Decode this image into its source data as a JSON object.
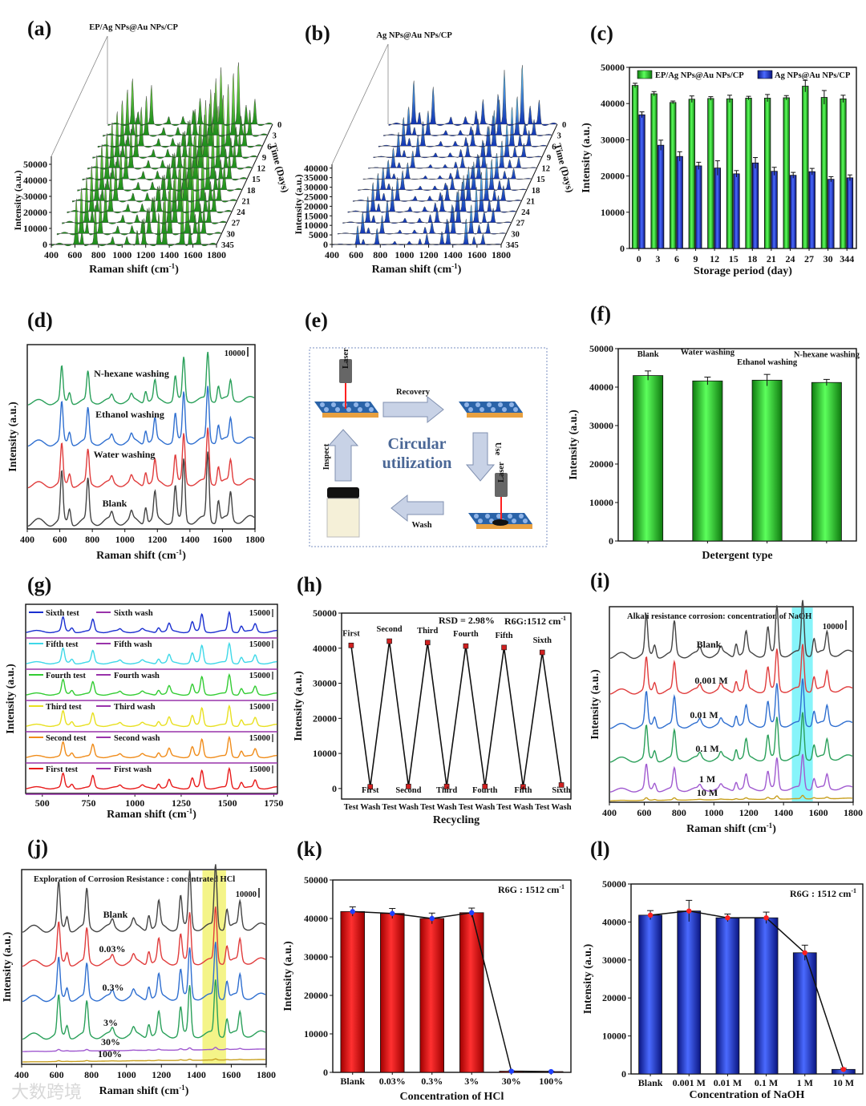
{
  "panel_letters": [
    "(a)",
    "(b)",
    "(c)",
    "(d)",
    "(e)",
    "(f)",
    "(g)",
    "(h)",
    "(i)",
    "(j)",
    "(k)",
    "(l)"
  ],
  "colors": {
    "green": "#22c422",
    "blue": "#1f2fa8",
    "red": "#e01010",
    "cyan": "#7eeef5",
    "yellow": "#f2f26a"
  },
  "watermark": "大数跨境",
  "chart_data": [
    {
      "id": "a",
      "type": "area",
      "title": "EP/Ag NPs@Au NPs/CP",
      "xlabel": "Raman shift (cm-1)",
      "ylabel": "Intensity (a.u.)",
      "zlabel": "Time (Days)",
      "xticks": [
        "400",
        "600",
        "800",
        "1000",
        "1200",
        "1400",
        "1600",
        "1800"
      ],
      "yticks": [
        "0",
        "10000",
        "20000",
        "30000",
        "40000",
        "50000"
      ],
      "zticks": [
        "0",
        "3",
        "6",
        "9",
        "12",
        "15",
        "18",
        "21",
        "24",
        "27",
        "30",
        "345"
      ],
      "ylim": [
        0,
        55000
      ],
      "series_color": "#22c422"
    },
    {
      "id": "b",
      "type": "area",
      "title": "Ag NPs@Au NPs/CP",
      "xlabel": "Raman shift (cm-1)",
      "ylabel": "Intensity (a.u.)",
      "zlabel": "Time (Days)",
      "xticks": [
        "400",
        "600",
        "800",
        "1000",
        "1200",
        "1400",
        "1600",
        "1800"
      ],
      "yticks": [
        "0",
        "5000",
        "10000",
        "15000",
        "20000",
        "25000",
        "30000",
        "35000",
        "40000"
      ],
      "zticks": [
        "0",
        "3",
        "6",
        "9",
        "12",
        "15",
        "18",
        "21",
        "24",
        "27",
        "30",
        "345"
      ],
      "ylim": [
        0,
        42000
      ],
      "series_color": "#1f5fd8"
    },
    {
      "id": "c",
      "type": "bar",
      "xlabel": "Storage period (day)",
      "ylabel": "Intensity (a.u.)",
      "categories": [
        "0",
        "3",
        "6",
        "9",
        "12",
        "15",
        "18",
        "21",
        "24",
        "27",
        "30",
        "344"
      ],
      "yticks": [
        "0",
        "10000",
        "20000",
        "30000",
        "40000",
        "50000"
      ],
      "ylim": [
        0,
        50000
      ],
      "series": [
        {
          "name": "EP/Ag NPs@Au NPs/CP",
          "values": [
            45000,
            42700,
            40300,
            41200,
            41400,
            41300,
            41500,
            41500,
            41600,
            44800,
            41700,
            41300
          ],
          "errors": [
            600,
            600,
            400,
            900,
            500,
            1000,
            500,
            1000,
            600,
            1600,
            1900,
            1000
          ]
        },
        {
          "name": "Ag NPs@Au NPs/CP",
          "values": [
            36900,
            28500,
            25400,
            22800,
            22200,
            20600,
            23600,
            21300,
            20200,
            21200,
            19100,
            19500
          ],
          "errors": [
            800,
            1400,
            1300,
            1000,
            2000,
            900,
            1500,
            1100,
            800,
            900,
            700,
            800
          ]
        }
      ]
    },
    {
      "id": "d",
      "type": "line",
      "xlabel": "Raman shift (cm-1)",
      "ylabel": "Intensity (a.u.)",
      "xticks": [
        "400",
        "600",
        "800",
        "1000",
        "1200",
        "1400",
        "1600",
        "1800"
      ],
      "scale_label": "10000",
      "series": [
        {
          "name": "Blank",
          "color": "#444444"
        },
        {
          "name": "Water washing",
          "color": "#e03c3c"
        },
        {
          "name": "Ethanol washing",
          "color": "#2f6fd0"
        },
        {
          "name": "N-hexane washing",
          "color": "#2aa05a"
        }
      ]
    },
    {
      "id": "e",
      "type": "diagram",
      "center_text": [
        "Circular",
        "utilization"
      ],
      "steps": [
        "Recovery",
        "Use",
        "Wash",
        "Inspect"
      ],
      "laser_label": "Laser"
    },
    {
      "id": "f",
      "type": "bar",
      "xlabel": "Detergent type",
      "ylabel": "Intensity (a.u.)",
      "categories": [
        "Blank",
        "Water washing",
        "Ethanol washing",
        "N-hexane washing"
      ],
      "values": [
        43000,
        41600,
        41800,
        41200
      ],
      "errors": [
        1200,
        1000,
        1500,
        800
      ],
      "yticks": [
        "0",
        "10000",
        "20000",
        "30000",
        "40000",
        "50000"
      ],
      "ylim": [
        0,
        50000
      ]
    },
    {
      "id": "g",
      "type": "line",
      "xlabel": "Raman shift (cm-1)",
      "ylabel": "Intensity (a.u.)",
      "xticks": [
        "500",
        "750",
        "1000",
        "1250",
        "1500",
        "1750"
      ],
      "scale_label": "15000",
      "series": [
        {
          "test": "Sixth test",
          "wash": "Sixth wash",
          "color": "#1a2fd0"
        },
        {
          "test": "Fifth test",
          "wash": "Fifth wash",
          "color": "#3ed8e8"
        },
        {
          "test": "Fourth test",
          "wash": "Fourth wash",
          "color": "#33cc33"
        },
        {
          "test": "Third test",
          "wash": "Third wash",
          "color": "#e8e020"
        },
        {
          "test": "Second test",
          "wash": "Second wash",
          "color": "#f08c1a"
        },
        {
          "test": "First test",
          "wash": "First wash",
          "color": "#e81a1a"
        }
      ],
      "wash_color": "#9933aa"
    },
    {
      "id": "h",
      "type": "line",
      "xlabel": "Recycling",
      "ylabel": "Intensity (a.u.)",
      "rsd": "RSD = 2.98%",
      "peak": "R6G:1512 cm-1",
      "categories": [
        "Test",
        "Wash",
        "Test",
        "Wash",
        "Test",
        "Wash",
        "Test",
        "Wash",
        "Test",
        "Wash",
        "Test",
        "Wash"
      ],
      "values": [
        40800,
        500,
        42000,
        600,
        41600,
        600,
        40600,
        600,
        40200,
        500,
        38800,
        1000
      ],
      "test_labels": [
        "First",
        "Second",
        "Third",
        "Fourth",
        "Fifth",
        "Sixth"
      ],
      "wash_labels": [
        "First",
        "Second",
        "Third",
        "Fourth",
        "Fifth",
        "Sixth"
      ],
      "yticks": [
        "0",
        "10000",
        "20000",
        "30000",
        "40000",
        "50000"
      ],
      "ylim": [
        -3000,
        50000
      ]
    },
    {
      "id": "i",
      "type": "line",
      "title": "Alkali resistance corrosion: concentration of NaOH",
      "xlabel": "Raman shift (cm-1)",
      "ylabel": "Intensity (a.u.)",
      "xticks": [
        "400",
        "600",
        "800",
        "1000",
        "1200",
        "1400",
        "1600",
        "1800"
      ],
      "scale_label": "10000",
      "series": [
        {
          "name": "Blank",
          "color": "#444444"
        },
        {
          "name": "0.001 M",
          "color": "#e03c3c"
        },
        {
          "name": "0.01 M",
          "color": "#2f6fd0"
        },
        {
          "name": "0.1 M",
          "color": "#2aa05a"
        },
        {
          "name": "1 M",
          "color": "#a05ad0"
        },
        {
          "name": "10 M",
          "color": "#c8a020"
        }
      ]
    },
    {
      "id": "j",
      "type": "line",
      "title": "Exploration of Corrosion Resistance : concentrated HCl",
      "xlabel": "Raman shift (cm-1)",
      "ylabel": "Intensity (a.u.)",
      "xticks": [
        "400",
        "600",
        "800",
        "1000",
        "1200",
        "1400",
        "1600",
        "1800"
      ],
      "scale_label": "10000",
      "series": [
        {
          "name": "Blank",
          "color": "#444444"
        },
        {
          "name": "0.03%",
          "color": "#e03c3c"
        },
        {
          "name": "0.3%",
          "color": "#2f6fd0"
        },
        {
          "name": "3%",
          "color": "#2aa05a"
        },
        {
          "name": "30%",
          "color": "#a05ad0"
        },
        {
          "name": "100%",
          "color": "#c8a020"
        }
      ]
    },
    {
      "id": "k",
      "type": "bar",
      "xlabel": "Concentration of HCl",
      "ylabel": "Intensity (a.u.)",
      "peak": "R6G : 1512 cm-1",
      "categories": [
        "Blank",
        "0.03%",
        "0.3%",
        "3%",
        "30%",
        "100%"
      ],
      "values": [
        41800,
        41300,
        40000,
        41500,
        300,
        200
      ],
      "errors": [
        1200,
        1300,
        1400,
        1200,
        100,
        100
      ],
      "yticks": [
        "0",
        "10000",
        "20000",
        "30000",
        "40000",
        "50000"
      ],
      "ylim": [
        0,
        50000
      ]
    },
    {
      "id": "l",
      "type": "bar",
      "xlabel": "Concentration of NaOH",
      "ylabel": "Intensity (a.u.)",
      "peak": "R6G : 1512 cm-1",
      "categories": [
        "Blank",
        "0.001 M",
        "0.01 M",
        "0.1 M",
        "1 M",
        "10 M"
      ],
      "values": [
        41800,
        42900,
        41100,
        41100,
        31900,
        1200
      ],
      "errors": [
        1200,
        2800,
        1000,
        1500,
        2000,
        300
      ],
      "yticks": [
        "0",
        "10000",
        "20000",
        "30000",
        "40000",
        "50000"
      ],
      "ylim": [
        0,
        50000
      ]
    }
  ]
}
